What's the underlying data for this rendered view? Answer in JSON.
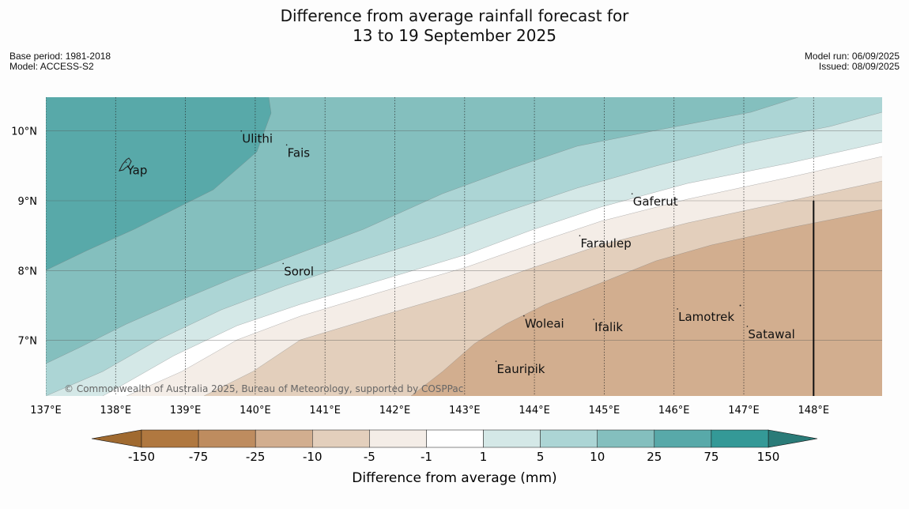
{
  "title": {
    "line1": "Difference from average rainfall forecast for",
    "line2": "13 to 19 September 2025"
  },
  "meta": {
    "base_period": "Base period: 1981-2018",
    "model": "Model: ACCESS-S2",
    "model_run": "Model run: 06/09/2025",
    "issued": "Issued: 08/09/2025"
  },
  "map": {
    "lon_range": [
      137,
      149
    ],
    "lat_range": [
      6.2,
      10.5
    ],
    "gridlines": "dotted meridians, solid parallels",
    "lon_ticks": [
      "137°E",
      "138°E",
      "139°E",
      "140°E",
      "141°E",
      "142°E",
      "143°E",
      "144°E",
      "145°E",
      "146°E",
      "147°E",
      "148°E"
    ],
    "lat_ticks": [
      "10°N",
      "9°N",
      "8°N",
      "7°N"
    ],
    "places": [
      {
        "name": "Ulithi",
        "lon": 139.8,
        "lat": 10.0
      },
      {
        "name": "Yap",
        "lon": 138.15,
        "lat": 9.55
      },
      {
        "name": "Fais",
        "lon": 140.45,
        "lat": 9.8
      },
      {
        "name": "Gaferut",
        "lon": 145.4,
        "lat": 9.1
      },
      {
        "name": "Faraulep",
        "lon": 144.65,
        "lat": 8.5
      },
      {
        "name": "Sorol",
        "lon": 140.4,
        "lat": 8.1
      },
      {
        "name": "Lamotrek",
        "lon": 146.05,
        "lat": 7.45
      },
      {
        "name": "Woleai",
        "lon": 143.85,
        "lat": 7.35
      },
      {
        "name": "Ifalik",
        "lon": 144.85,
        "lat": 7.3
      },
      {
        "name": "Satawal",
        "lon": 147.05,
        "lat": 7.2
      },
      {
        "name": "Eauripik",
        "lon": 143.45,
        "lat": 6.7
      }
    ],
    "boundary_line": {
      "lon": 148.0,
      "lat_from": 6.2,
      "lat_to": 9.0
    },
    "copyright": "© Commonwealth of Australia 2025, Bureau of Meteorology, supported by COSPPac"
  },
  "colorbar": {
    "label": "Difference from average (mm)",
    "ticks": [
      "-150",
      "-75",
      "-25",
      "-10",
      "-5",
      "-1",
      "1",
      "5",
      "10",
      "25",
      "75",
      "150"
    ],
    "colors": [
      "#b07840",
      "#be8c5f",
      "#d2ae8f",
      "#e3cfbc",
      "#f4ede7",
      "#ffffff",
      "#d4e8e7",
      "#acd5d5",
      "#84bfbe",
      "#58a9a9",
      "#349997"
    ],
    "extend_low_color": "#a06a30",
    "extend_high_color": "#2a7b78"
  }
}
